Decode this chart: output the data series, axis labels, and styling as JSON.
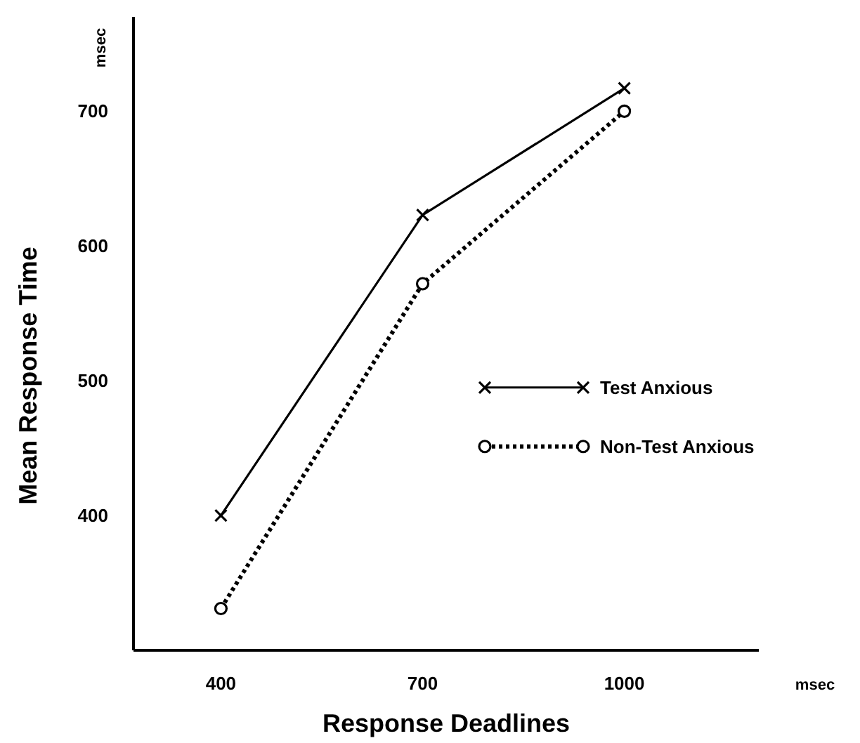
{
  "chart_data": {
    "type": "line",
    "xlabel": "Response Deadlines",
    "ylabel": "Mean Response Time",
    "x": [
      400,
      700,
      1000
    ],
    "series": [
      {
        "name": "Test Anxious",
        "color": "#000000",
        "values": [
          400,
          623,
          717
        ],
        "marker": "cross",
        "line_style": "solid"
      },
      {
        "name": "Non-Test Anxious",
        "color": "#000000",
        "values": [
          331,
          572,
          700
        ],
        "marker": "circle",
        "line_style": "dotted"
      }
    ],
    "xlim": [
      270,
      1200
    ],
    "xticks": [
      400,
      700,
      1000
    ],
    "ylim": [
      300,
      770
    ],
    "yticks": [
      400,
      500,
      600,
      700
    ],
    "annotations": [
      "msec",
      "msec"
    ],
    "legend": "right",
    "grid": false
  }
}
